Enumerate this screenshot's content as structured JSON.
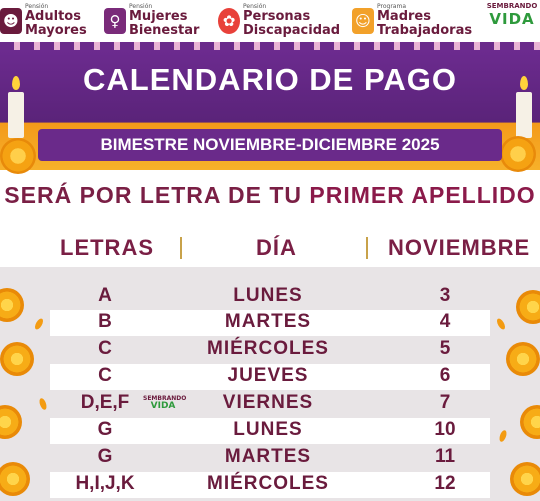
{
  "logos": [
    {
      "small": "Pensión",
      "line1": "Adultos",
      "line2": "Mayores",
      "color": "#6a1b3d"
    },
    {
      "small": "Pensión",
      "line1": "Mujeres",
      "line2": "Bienestar",
      "color": "#6a1b3d"
    },
    {
      "small": "Pensión",
      "line1": "Personas",
      "line2": "Discapacidad",
      "color": "#6a1b3d"
    },
    {
      "small": "Programa",
      "line1": "Madres",
      "line2": "Trabajadoras",
      "color": "#6a1b3d"
    }
  ],
  "brand": {
    "line1": "SEMBRANDO",
    "line2": "VIDA"
  },
  "header": {
    "title": "CALENDARIO DE PAGO",
    "subtitle": "BIMESTRE NOVIEMBRE-DICIEMBRE 2025"
  },
  "rule": {
    "prefix": "SERÁ POR LETRA DE TU",
    "highlight": "PRIMER APELLIDO"
  },
  "table": {
    "headers": {
      "letters": "LETRAS",
      "day": "DÍA",
      "month": "NOVIEMBRE"
    },
    "rows": [
      {
        "letters": "A",
        "day": "LUNES",
        "date": "3"
      },
      {
        "letters": "B",
        "day": "MARTES",
        "date": "4"
      },
      {
        "letters": "C",
        "day": "MIÉRCOLES",
        "date": "5"
      },
      {
        "letters": "C",
        "day": "JUEVES",
        "date": "6"
      },
      {
        "letters": "D,E,F",
        "day": "VIERNES",
        "date": "7"
      },
      {
        "letters": "G",
        "day": "LUNES",
        "date": "10"
      },
      {
        "letters": "G",
        "day": "MARTES",
        "date": "11"
      },
      {
        "letters": "H,I,J,K",
        "day": "MIÉRCOLES",
        "date": "12"
      }
    ]
  },
  "colors": {
    "purple": "#6a2a8a",
    "maroon": "#6a1b3d",
    "orange": "#f39a1a",
    "green": "#2e9a3c"
  }
}
